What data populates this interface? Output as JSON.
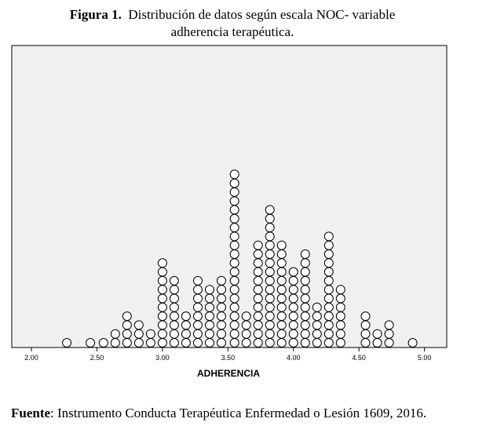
{
  "caption": {
    "label": "Figura 1.",
    "text_line1": "Distribución de datos según escala NOC- variable",
    "text_line2": "adherencia terapéutica."
  },
  "source": {
    "label": "Fuente",
    "text": ": Instrumento Conducta Terapéutica Enfermedad o Lesión 1609, 2016."
  },
  "colors": {
    "plot_background": "#f0f0f0",
    "marker_stroke": "#000000",
    "marker_fill": "#ffffff"
  },
  "chart_data": {
    "type": "scatter",
    "subtype": "dot-plot",
    "title": "",
    "xlabel": "ADHERENCIA",
    "ylabel": "",
    "xlim": [
      1.85,
      5.17
    ],
    "x_ticks": [
      2.0,
      2.5,
      3.0,
      3.5,
      4.0,
      4.5,
      5.0
    ],
    "x_tick_labels": [
      "2.00",
      "2.50",
      "3.00",
      "3.50",
      "4.00",
      "4.50",
      "5.00"
    ],
    "grid": false,
    "marker": "open-circle",
    "stacks": [
      {
        "x": 2.27,
        "count": 1
      },
      {
        "x": 2.45,
        "count": 1
      },
      {
        "x": 2.55,
        "count": 1
      },
      {
        "x": 2.64,
        "count": 2
      },
      {
        "x": 2.73,
        "count": 4
      },
      {
        "x": 2.82,
        "count": 3
      },
      {
        "x": 2.91,
        "count": 2
      },
      {
        "x": 3.0,
        "count": 10
      },
      {
        "x": 3.09,
        "count": 8
      },
      {
        "x": 3.18,
        "count": 4
      },
      {
        "x": 3.27,
        "count": 8
      },
      {
        "x": 3.36,
        "count": 7
      },
      {
        "x": 3.45,
        "count": 8
      },
      {
        "x": 3.55,
        "count": 20
      },
      {
        "x": 3.64,
        "count": 4
      },
      {
        "x": 3.73,
        "count": 12
      },
      {
        "x": 3.82,
        "count": 16
      },
      {
        "x": 3.91,
        "count": 12
      },
      {
        "x": 4.0,
        "count": 9
      },
      {
        "x": 4.09,
        "count": 11
      },
      {
        "x": 4.18,
        "count": 5
      },
      {
        "x": 4.27,
        "count": 13
      },
      {
        "x": 4.36,
        "count": 7
      },
      {
        "x": 4.55,
        "count": 4
      },
      {
        "x": 4.64,
        "count": 2
      },
      {
        "x": 4.73,
        "count": 3
      },
      {
        "x": 4.91,
        "count": 1
      }
    ]
  }
}
